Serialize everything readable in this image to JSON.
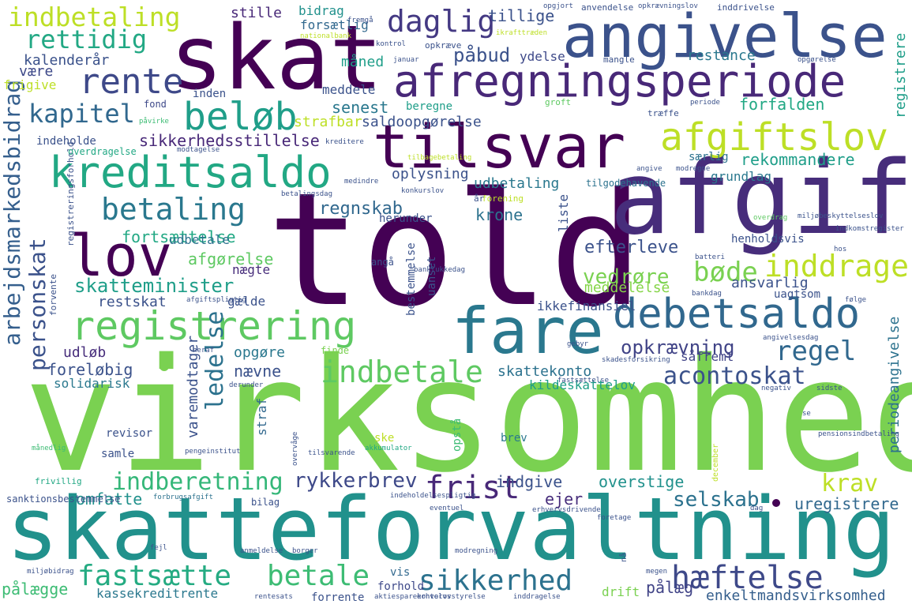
{
  "words": [
    {
      "text": "virksomhed",
      "color": "#7ad151"
    },
    {
      "text": "told",
      "color": "#440154"
    },
    {
      "text": "skatteforvaltning",
      "color": "#21918c"
    },
    {
      "text": "afgift",
      "color": "#472d7b"
    },
    {
      "text": "skat",
      "color": "#440154"
    },
    {
      "text": "angivelse",
      "color": "#3b528b"
    },
    {
      "text": "tilsvar",
      "color": "#440154"
    },
    {
      "text": "fare",
      "color": "#2a788e"
    },
    {
      "text": "afregningsperiode",
      "color": "#482878"
    },
    {
      "text": "registrering",
      "color": "#5ec962"
    },
    {
      "text": "kreditsaldo",
      "color": "#22a884"
    },
    {
      "text": "lov",
      "color": "#440154"
    },
    {
      "text": "debetsaldo",
      "color": "#31688e"
    },
    {
      "text": "beløb",
      "color": "#1f9e89"
    },
    {
      "text": "afgiftslov",
      "color": "#bddf26"
    },
    {
      "text": "rente",
      "color": "#3e4989"
    },
    {
      "text": "daglig",
      "color": "#443983"
    },
    {
      "text": "indbetaling",
      "color": "#bddf26"
    },
    {
      "text": "betaling",
      "color": "#2a788e"
    },
    {
      "text": "fastsætte",
      "color": "#25ab82"
    },
    {
      "text": "betale",
      "color": "#3dbc74"
    },
    {
      "text": "sikkerhed",
      "color": "#2c728e"
    },
    {
      "text": "hæftelse",
      "color": "#3e4989"
    },
    {
      "text": "frist",
      "color": "#482878"
    },
    {
      "text": "indbetale",
      "color": "#5ec962"
    },
    {
      "text": "rettidig",
      "color": "#22a884"
    },
    {
      "text": "kapitel",
      "color": "#31688e"
    },
    {
      "text": "inddrage",
      "color": "#bddf26"
    },
    {
      "text": "bøde",
      "color": "#7ad151"
    },
    {
      "text": "regel",
      "color": "#31688e"
    },
    {
      "text": "acontoskat",
      "color": "#3b528b"
    },
    {
      "text": "indberetning",
      "color": "#35b779"
    },
    {
      "text": "skatteminister",
      "color": "#1f9e89"
    },
    {
      "text": "rykkerbrev",
      "color": "#3e4989"
    },
    {
      "text": "selskab",
      "color": "#2c728e"
    },
    {
      "text": "krav",
      "color": "#bddf26"
    },
    {
      "text": "opkrævning",
      "color": "#414487"
    },
    {
      "text": "ledelse",
      "color": "#2c728e"
    },
    {
      "text": "arbejdsmarkedsbidrag",
      "color": "#355f8d"
    },
    {
      "text": "personskat",
      "color": "#3b528b"
    },
    {
      "text": "sikkerhedsstillelse",
      "color": "#482878"
    },
    {
      "text": "rekommandere",
      "color": "#1f9e89"
    },
    {
      "text": "regnskab",
      "color": "#31688e"
    },
    {
      "text": "udbetaling",
      "color": "#2a788e"
    },
    {
      "text": "krone",
      "color": "#2c728e"
    },
    {
      "text": "vedrøre",
      "color": "#7ad151"
    },
    {
      "text": "efterleve",
      "color": "#3b528b"
    },
    {
      "text": "fortsættelse",
      "color": "#22a884"
    },
    {
      "text": "afgørelse",
      "color": "#5ec962"
    },
    {
      "text": "udbetale",
      "color": "#2c728e"
    },
    {
      "text": "restskat",
      "color": "#3b528b"
    },
    {
      "text": "nægte",
      "color": "#472d7b"
    },
    {
      "text": "gælde",
      "color": "#3b528b"
    },
    {
      "text": "meddelelse",
      "color": "#86d549"
    },
    {
      "text": "ansvarlig",
      "color": "#3b528b"
    },
    {
      "text": "ikkefinansiel",
      "color": "#3b528b"
    },
    {
      "text": "opgøre",
      "color": "#2a788e"
    },
    {
      "text": "nævne",
      "color": "#3b528b"
    },
    {
      "text": "foreløbig",
      "color": "#3b528b"
    },
    {
      "text": "solidarisk",
      "color": "#2a788e"
    },
    {
      "text": "skattekonto",
      "color": "#2c728e"
    },
    {
      "text": "kildeskattelov",
      "color": "#1f9e89"
    },
    {
      "text": "såfremt",
      "color": "#414487"
    },
    {
      "text": "udløb",
      "color": "#472d7b"
    },
    {
      "text": "omfatte",
      "color": "#21918c"
    },
    {
      "text": "indgive",
      "color": "#3b528b"
    },
    {
      "text": "overstige",
      "color": "#21918c"
    },
    {
      "text": "ejer",
      "color": "#472d7b"
    },
    {
      "text": "pålægge",
      "color": "#3dbc74"
    },
    {
      "text": "kassekreditrente",
      "color": "#2a788e"
    },
    {
      "text": "drift",
      "color": "#7ad151"
    },
    {
      "text": "pålæg",
      "color": "#414487"
    },
    {
      "text": "enkeltmandsvirksomhed",
      "color": "#355f8d"
    },
    {
      "text": "uregistrere",
      "color": "#31688e"
    },
    {
      "text": "forhold",
      "color": "#3e4989"
    },
    {
      "text": "vis",
      "color": "#31688e"
    },
    {
      "text": "forrente",
      "color": "#3b528b"
    },
    {
      "text": "senest",
      "color": "#2a788e"
    },
    {
      "text": "beregne",
      "color": "#1f9e89"
    },
    {
      "text": "saldoopgørelse",
      "color": "#3b528b"
    },
    {
      "text": "forfalden",
      "color": "#22a884"
    },
    {
      "text": "restance",
      "color": "#2a788e"
    },
    {
      "text": "påbud",
      "color": "#3b528b"
    },
    {
      "text": "ydelse",
      "color": "#3e4989"
    },
    {
      "text": "måned",
      "color": "#1f9e89"
    },
    {
      "text": "meddele",
      "color": "#3b528b"
    },
    {
      "text": "strafbar",
      "color": "#bddf26"
    },
    {
      "text": "stille",
      "color": "#482878"
    },
    {
      "text": "bidrag",
      "color": "#21918c"
    },
    {
      "text": "tillige",
      "color": "#3b528b"
    },
    {
      "text": "forsætlig",
      "color": "#31688e"
    },
    {
      "text": "kalenderår",
      "color": "#3b528b"
    },
    {
      "text": "være",
      "color": "#3e4989"
    },
    {
      "text": "frigive",
      "color": "#bddf26"
    },
    {
      "text": "inden",
      "color": "#3b528b"
    },
    {
      "text": "fond",
      "color": "#3e4989"
    },
    {
      "text": "indeholde",
      "color": "#3b528b"
    },
    {
      "text": "overdragelse",
      "color": "#22a884"
    },
    {
      "text": "oplysning",
      "color": "#3b528b"
    },
    {
      "text": "særlig",
      "color": "#2c728e"
    },
    {
      "text": "grundlag",
      "color": "#2a788e"
    },
    {
      "text": "tilgodehavende",
      "color": "#2c728e"
    },
    {
      "text": "liste",
      "color": "#3b528b"
    },
    {
      "text": "henholdsvis",
      "color": "#3b528b"
    },
    {
      "text": "uagtsom",
      "color": "#3b528b"
    },
    {
      "text": "registrere",
      "color": "#1f9e89"
    },
    {
      "text": "periodeangivelse",
      "color": "#2c728e"
    },
    {
      "text": "herunder",
      "color": "#3b528b"
    },
    {
      "text": "angå",
      "color": "#3b528b"
    },
    {
      "text": "finde",
      "color": "#7ad151"
    },
    {
      "text": "varemodtager",
      "color": "#3b528b"
    },
    {
      "text": "samle",
      "color": "#3b528b"
    },
    {
      "text": "straf",
      "color": "#31688e"
    },
    {
      "text": "brev",
      "color": "#2a788e"
    },
    {
      "text": "ske",
      "color": "#bddf26"
    },
    {
      "text": "opstå",
      "color": "#3dbc74"
    },
    {
      "text": "bestemmelse",
      "color": "#3b528b"
    },
    {
      "text": "uanset",
      "color": "#3b528b"
    },
    {
      "text": "revisor",
      "color": "#3b528b"
    },
    {
      "text": "opgjort",
      "color": "#3b528b"
    },
    {
      "text": "anvendelse",
      "color": "#3b528b"
    },
    {
      "text": "opkrævningslov",
      "color": "#3b528b"
    },
    {
      "text": "inddrivelse",
      "color": "#3b528b"
    },
    {
      "text": "nationalbank",
      "color": "#bddf26"
    },
    {
      "text": "kontrol",
      "color": "#3b528b"
    },
    {
      "text": "opkræve",
      "color": "#3b528b"
    },
    {
      "text": "ikrafttræden",
      "color": "#bddf26"
    },
    {
      "text": "januar",
      "color": "#3b528b"
    },
    {
      "text": "mangle",
      "color": "#3b528b"
    },
    {
      "text": "opgørelse",
      "color": "#3b528b"
    },
    {
      "text": "periode",
      "color": "#3b528b"
    },
    {
      "text": "groft",
      "color": "#5ec962"
    },
    {
      "text": "påvirke",
      "color": "#3dbc74"
    },
    {
      "text": "træffe",
      "color": "#3b528b"
    },
    {
      "text": "kreditere",
      "color": "#3b528b"
    },
    {
      "text": "modtagelse",
      "color": "#3b528b"
    },
    {
      "text": "angive",
      "color": "#3b528b"
    },
    {
      "text": "modregne",
      "color": "#3b528b"
    },
    {
      "text": "betalingsdag",
      "color": "#3b528b"
    },
    {
      "text": "konkurslov",
      "color": "#3b528b"
    },
    {
      "text": "forening",
      "color": "#bddf26"
    },
    {
      "text": "år",
      "color": "#3b528b"
    },
    {
      "text": "beløbsgrænse",
      "color": "#3b528b"
    },
    {
      "text": "registreringsforhold",
      "color": "#3b528b"
    },
    {
      "text": "forvente",
      "color": "#3b528b"
    },
    {
      "text": "overdrag",
      "color": "#5ec962"
    },
    {
      "text": "indkomstregister",
      "color": "#3b528b"
    },
    {
      "text": "hos",
      "color": "#3b528b"
    },
    {
      "text": "batteri",
      "color": "#3b528b"
    },
    {
      "text": "banklukkedag",
      "color": "#3b528b"
    },
    {
      "text": "afgiftspligtig",
      "color": "#3b528b"
    },
    {
      "text": "bankdag",
      "color": "#3b528b"
    },
    {
      "text": "følge",
      "color": "#3b528b"
    },
    {
      "text": "heraf",
      "color": "#3b528b"
    },
    {
      "text": "gebyr",
      "color": "#3b528b"
    },
    {
      "text": "skadesforsikring",
      "color": "#3b528b"
    },
    {
      "text": "angivelsesdag",
      "color": "#3b528b"
    },
    {
      "text": "derunder",
      "color": "#3b528b"
    },
    {
      "text": "fastsættelse",
      "color": "#3b528b"
    },
    {
      "text": "negativ",
      "color": "#3b528b"
    },
    {
      "text": "sidste",
      "color": "#3b528b"
    },
    {
      "text": "månedlig",
      "color": "#3dbc74"
    },
    {
      "text": "pengeinstitut",
      "color": "#3b528b"
    },
    {
      "text": "tilsvarende",
      "color": "#3b528b"
    },
    {
      "text": "akkumulator",
      "color": "#22a884"
    },
    {
      "text": "frivillig",
      "color": "#22a884"
    },
    {
      "text": "sanktionsbestemmelse",
      "color": "#3b528b"
    },
    {
      "text": "forbrugsafgift",
      "color": "#2c728e"
    },
    {
      "text": "bilag",
      "color": "#3b528b"
    },
    {
      "text": "indeholdelsespligtig",
      "color": "#3b528b"
    },
    {
      "text": "eventuel",
      "color": "#3b528b"
    },
    {
      "text": "erhvervsdrivende",
      "color": "#3b528b"
    },
    {
      "text": "dag",
      "color": "#3b528b"
    },
    {
      "text": "foretage",
      "color": "#3b528b"
    },
    {
      "text": "fejl",
      "color": "#3b528b"
    },
    {
      "text": "anmeldelse",
      "color": "#3b528b"
    },
    {
      "text": "borger",
      "color": "#3b528b"
    },
    {
      "text": "modregning",
      "color": "#3b528b"
    },
    {
      "text": "miljøbidrag",
      "color": "#3b528b"
    },
    {
      "text": "aktiesparekontolov",
      "color": "#3b528b"
    },
    {
      "text": "erhvervsstyrelse",
      "color": "#3b528b"
    },
    {
      "text": "inddragelse",
      "color": "#3b528b"
    },
    {
      "text": "rentesats",
      "color": "#3b528b"
    },
    {
      "text": "megen",
      "color": "#3b528b"
    },
    {
      "text": "fremgå",
      "color": "#3b528b"
    },
    {
      "text": "december",
      "color": "#bddf26"
    },
    {
      "text": "overvåge",
      "color": "#3b528b"
    },
    {
      "text": "se",
      "color": "#3b528b"
    },
    {
      "text": "nå",
      "color": "#3b528b"
    },
    {
      "text": "pensionsindbetaling",
      "color": "#3b528b"
    },
    {
      "text": "miljøbeskyttelseslov",
      "color": "#3b528b"
    },
    {
      "text": "medindre",
      "color": "#3b528b"
    },
    {
      "text": "tilbagebetaling",
      "color": "#bddf26"
    }
  ]
}
